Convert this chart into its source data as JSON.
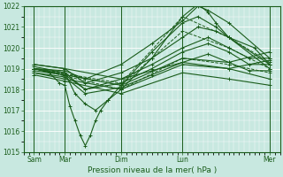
{
  "xlabel": "Pression niveau de la mer( hPa )",
  "bg_color": "#c8e8e0",
  "grid_color": "#ffffff",
  "line_color": "#1a5c1a",
  "ylim": [
    1015,
    1022
  ],
  "yticks": [
    1015,
    1016,
    1017,
    1018,
    1019,
    1020,
    1021,
    1022
  ],
  "xtick_labels": [
    "Sam",
    "Mar",
    "Dim",
    "Lun",
    "Mer"
  ],
  "xtick_pos": [
    0.04,
    0.16,
    0.38,
    0.62,
    0.96
  ],
  "vline_pos": [
    0.04,
    0.16,
    0.38,
    0.62,
    0.96
  ],
  "series": [
    [
      0.04,
      1019.0,
      0.1,
      1018.8,
      0.14,
      1018.3,
      0.16,
      1018.2,
      0.18,
      1017.2,
      0.2,
      1016.5,
      0.22,
      1015.8,
      0.24,
      1015.3,
      0.26,
      1015.8,
      0.28,
      1016.5,
      0.3,
      1017.0,
      0.33,
      1017.5,
      0.38,
      1018.0,
      0.5,
      1019.5,
      0.62,
      1021.5,
      0.68,
      1022.1,
      0.72,
      1021.7,
      0.75,
      1021.2,
      0.8,
      1020.5,
      0.9,
      1020.0,
      0.96,
      1019.2
    ],
    [
      0.04,
      1019.1,
      0.16,
      1018.8,
      0.2,
      1017.8,
      0.24,
      1017.3,
      0.28,
      1017.0,
      0.33,
      1017.5,
      0.38,
      1018.2,
      0.5,
      1019.8,
      0.62,
      1021.2,
      0.68,
      1021.5,
      0.75,
      1021.0,
      0.8,
      1020.5,
      0.96,
      1019.0
    ],
    [
      0.04,
      1019.0,
      0.16,
      1018.9,
      0.24,
      1018.5,
      0.38,
      1019.2,
      0.5,
      1020.2,
      0.62,
      1021.3,
      0.68,
      1022.0,
      0.72,
      1021.8,
      0.8,
      1021.2,
      0.96,
      1019.5
    ],
    [
      0.04,
      1019.2,
      0.16,
      1019.0,
      0.24,
      1018.3,
      0.38,
      1018.8,
      0.5,
      1019.5,
      0.62,
      1020.5,
      0.68,
      1021.0,
      0.75,
      1020.8,
      0.8,
      1020.5,
      0.96,
      1019.2
    ],
    [
      0.04,
      1019.0,
      0.16,
      1018.8,
      0.24,
      1018.0,
      0.38,
      1018.5,
      0.5,
      1019.2,
      0.62,
      1020.0,
      0.72,
      1020.5,
      0.8,
      1020.0,
      0.88,
      1019.5,
      0.96,
      1019.5
    ],
    [
      0.04,
      1018.9,
      0.16,
      1018.7,
      0.24,
      1018.0,
      0.38,
      1018.3,
      0.5,
      1019.0,
      0.62,
      1019.8,
      0.72,
      1020.2,
      0.8,
      1019.8,
      0.88,
      1019.2,
      0.96,
      1019.2
    ],
    [
      0.04,
      1018.8,
      0.16,
      1018.6,
      0.24,
      1017.8,
      0.38,
      1018.1,
      0.5,
      1018.7,
      0.62,
      1019.3,
      0.72,
      1019.7,
      0.8,
      1019.3,
      0.88,
      1018.9,
      0.96,
      1018.9
    ],
    [
      0.04,
      1018.8,
      0.16,
      1018.5,
      0.38,
      1018.0,
      0.62,
      1019.2,
      0.8,
      1019.0,
      0.96,
      1018.5
    ],
    [
      0.04,
      1019.0,
      0.16,
      1018.7,
      0.38,
      1018.2,
      0.62,
      1019.5,
      0.8,
      1019.3,
      0.96,
      1019.8
    ],
    [
      0.04,
      1019.2,
      0.16,
      1019.0,
      0.38,
      1018.5,
      0.5,
      1018.9,
      0.62,
      1019.3,
      0.8,
      1019.0,
      0.96,
      1019.4
    ],
    [
      0.04,
      1018.7,
      0.16,
      1018.4,
      0.38,
      1017.8,
      0.62,
      1018.8,
      0.8,
      1018.5,
      0.96,
      1018.2
    ]
  ],
  "dashed_series": [
    [
      0.04,
      1019.0,
      0.38,
      1018.2,
      0.62,
      1020.8,
      0.8,
      1020.0,
      0.96,
      1019.0
    ],
    [
      0.04,
      1019.0,
      0.38,
      1018.3,
      0.62,
      1021.5,
      0.8,
      1020.5,
      0.96,
      1019.3
    ],
    [
      0.04,
      1019.0,
      0.38,
      1018.0,
      0.62,
      1019.5,
      0.8,
      1019.2,
      0.96,
      1018.8
    ]
  ]
}
